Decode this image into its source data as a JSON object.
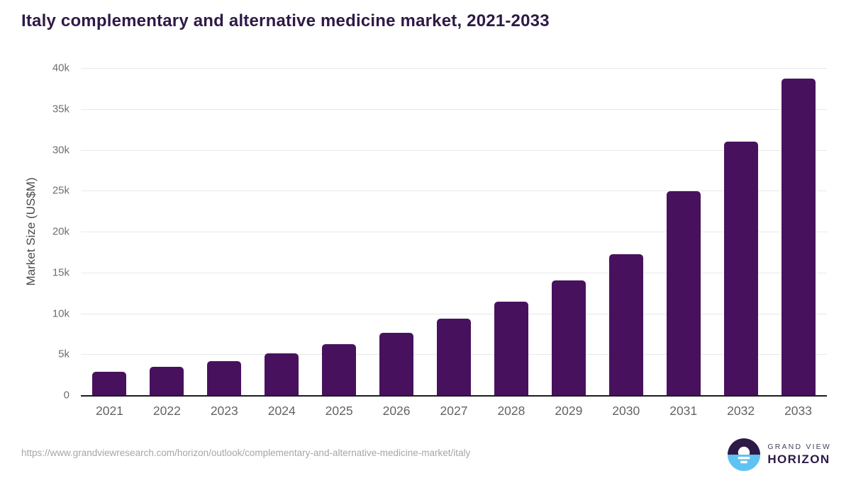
{
  "title": "Italy complementary and alternative medicine market, 2021-2033",
  "chart_data": {
    "type": "bar",
    "title": "Italy complementary and alternative medicine market, 2021-2033",
    "categories": [
      "2021",
      "2022",
      "2023",
      "2024",
      "2025",
      "2026",
      "2027",
      "2028",
      "2029",
      "2030",
      "2031",
      "2032",
      "2033"
    ],
    "values": [
      2900,
      3500,
      4200,
      5150,
      6250,
      7600,
      9350,
      11400,
      14050,
      17250,
      24900,
      31000,
      38700
    ],
    "xlabel": "",
    "ylabel": "Market Size (US$M)",
    "ylim": [
      0,
      40000
    ],
    "ytick_step": 5000,
    "ytick_labels": [
      "0",
      "5k",
      "10k",
      "15k",
      "20k",
      "25k",
      "30k",
      "35k",
      "40k"
    ],
    "grid": true,
    "legend_position": "none",
    "bar_color": "#48115e"
  },
  "footer": {
    "source_url": "https://www.grandviewresearch.com/horizon/outlook/complementary-and-alternative-medicine-market/italy"
  },
  "branding": {
    "company": "GRAND VIEW",
    "product": "HORIZON",
    "logo_top_color": "#2e1a47",
    "logo_bottom_color": "#5ec3f2"
  },
  "colors": {
    "title": "#2e1a47",
    "bar": "#48115e",
    "gridline": "#e8e8e8",
    "axis_line": "#1c1c1c",
    "tick_text": "#6f6f6f"
  }
}
